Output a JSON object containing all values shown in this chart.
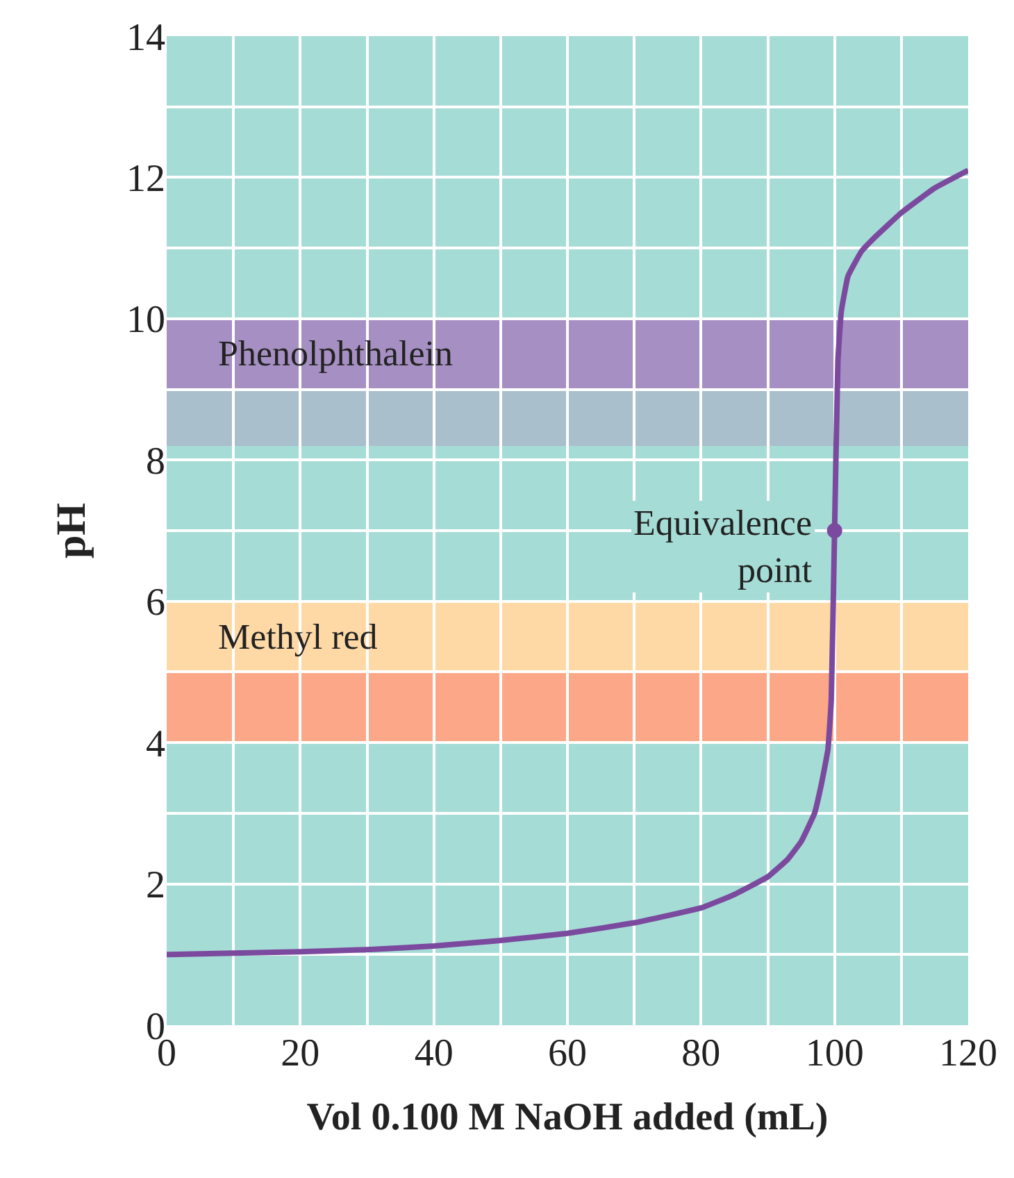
{
  "chart_data": {
    "type": "line",
    "xlabel": "Vol 0.100 M NaOH added (mL)",
    "ylabel": "pH",
    "x": [
      0,
      10,
      20,
      30,
      40,
      50,
      60,
      70,
      80,
      85,
      90,
      93,
      95,
      97,
      98,
      99,
      99.5,
      100,
      100.5,
      101,
      102,
      104,
      106,
      110,
      115,
      120
    ],
    "series": [
      {
        "color": "#7b4a9e",
        "values": [
          1.0,
          1.02,
          1.04,
          1.07,
          1.12,
          1.2,
          1.3,
          1.45,
          1.66,
          1.85,
          2.1,
          2.35,
          2.6,
          3.0,
          3.4,
          3.9,
          4.6,
          7.0,
          9.4,
          10.1,
          10.6,
          10.95,
          11.15,
          11.5,
          11.85,
          12.1
        ]
      }
    ],
    "xlim": [
      0,
      120
    ],
    "ylim": [
      0,
      14
    ],
    "xticks": [
      0,
      20,
      40,
      60,
      80,
      100,
      120
    ],
    "yticks": [
      0,
      2,
      4,
      6,
      8,
      10,
      12,
      14
    ],
    "grid": true,
    "legend": false,
    "marker": "none",
    "line_style": "solid",
    "bands": [
      {
        "axis": "y",
        "from": 9,
        "to": 10,
        "label": "Phenolphthalein",
        "color": "#a68fc3"
      },
      {
        "axis": "y",
        "from": 8.2,
        "to": 9,
        "label": null,
        "color": "#a9bfcc"
      },
      {
        "axis": "y",
        "from": 5,
        "to": 6,
        "label": "Methyl red",
        "color": "#fed9a6"
      },
      {
        "axis": "y",
        "from": 4,
        "to": 5,
        "label": null,
        "color": "#fca788"
      }
    ],
    "annotations": [
      {
        "text": "Equivalence\npoint",
        "x": 100,
        "y": 7
      }
    ]
  }
}
